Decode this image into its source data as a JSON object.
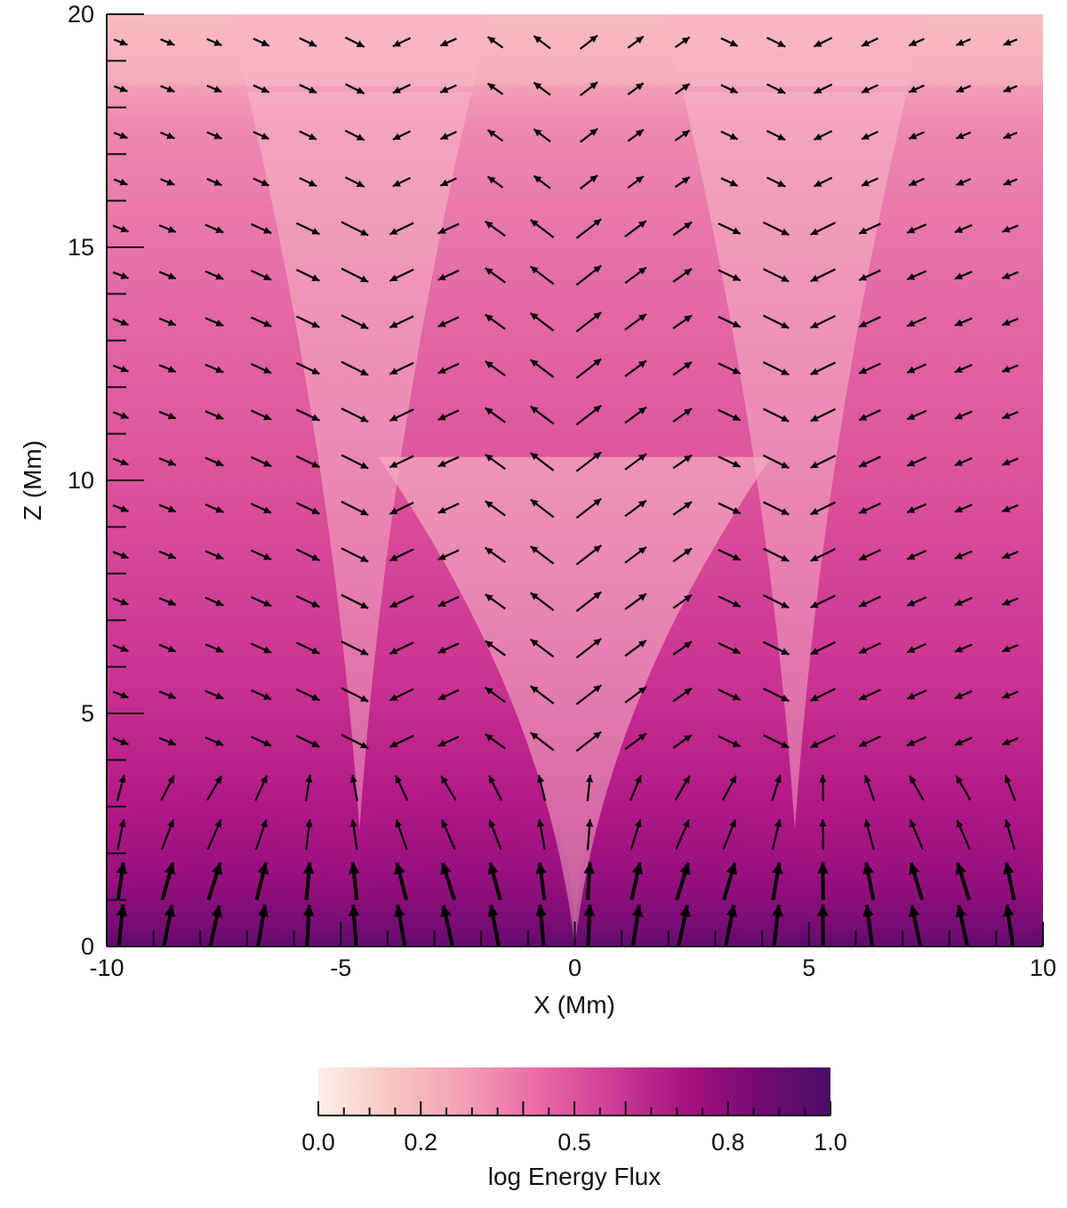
{
  "chart_data": {
    "type": "heatmap",
    "subtype": "filled-contour with vector field",
    "title": "",
    "xlabel": "X (Mm)",
    "ylabel": "Z (Mm)",
    "xlim": [
      -10,
      10
    ],
    "ylim": [
      0,
      20
    ],
    "x_ticks": [
      "-10",
      "-5",
      "0",
      "5",
      "10"
    ],
    "y_ticks": [
      "0",
      "5",
      "10",
      "15",
      "20"
    ],
    "colorbar": {
      "label": "log Energy Flux",
      "range": [
        0.0,
        1.0
      ],
      "ticks": [
        "0.0",
        "0.2",
        "0.5",
        "0.8",
        "1.0"
      ],
      "colors": [
        "#fdeee9",
        "#f8c6c2",
        "#f39fb6",
        "#e96aa4",
        "#cf3e98",
        "#a8127f",
        "#730b73",
        "#4b0c68"
      ]
    },
    "background_field": {
      "description_values": "log energy flux decreases with height; maxima near Z=0, minima near top; funnel-shaped low-flux channels at X≈-4.5, X≈0 (Z<9) and X≈4.7",
      "levels_by_height": [
        {
          "z": 0,
          "value": 1.0
        },
        {
          "z": 1,
          "value": 0.85
        },
        {
          "z": 3,
          "value": 0.72
        },
        {
          "z": 6,
          "value": 0.62
        },
        {
          "z": 10,
          "value": 0.55
        },
        {
          "z": 15,
          "value": 0.47
        },
        {
          "z": 18.3,
          "value": 0.42
        },
        {
          "z": 20,
          "value": 0.28
        }
      ]
    },
    "vector_field": {
      "x_positions": [
        -9.7,
        -8.7,
        -7.7,
        -6.7,
        -5.7,
        -4.7,
        -3.7,
        -2.7,
        -1.7,
        -0.7,
        0.3,
        1.3,
        2.3,
        3.3,
        4.3,
        5.3,
        6.3,
        7.3,
        8.3,
        9.3
      ],
      "z_positions": [
        0.4,
        1.4,
        2.4,
        3.4,
        4.4,
        5.4,
        6.4,
        7.4,
        8.4,
        9.4,
        10.4,
        11.4,
        12.4,
        13.4,
        14.4,
        15.4,
        16.4,
        17.4,
        18.4,
        19.4
      ],
      "note": "arrow direction and magnitude shown as arrow glyphs"
    }
  }
}
